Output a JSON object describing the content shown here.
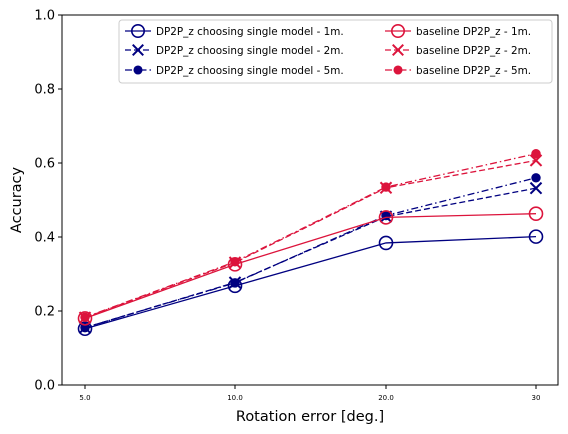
{
  "chart_data": {
    "type": "line",
    "title": "",
    "xlabel": "Rotation error [deg.]",
    "ylabel": "Accuracy",
    "categories": [
      "5.0",
      "10.0",
      "20.0",
      "30"
    ],
    "ylim": [
      0,
      1
    ],
    "yticks": [
      "0.0",
      "0.2",
      "0.4",
      "0.6",
      "0.8",
      "1.0"
    ],
    "grid": false,
    "legend_position": "top-right",
    "series": [
      {
        "name": "DP2P_z choosing single model - 1m.",
        "color": "#000080",
        "linestyle": "solid",
        "marker": "open-circle",
        "values": [
          0.152,
          0.268,
          0.384,
          0.401
        ]
      },
      {
        "name": "DP2P_z choosing single model - 2m.",
        "color": "#000080",
        "linestyle": "dashed",
        "marker": "x",
        "values": [
          0.155,
          0.277,
          0.455,
          0.532
        ]
      },
      {
        "name": "DP2P_z choosing single model - 5m.",
        "color": "#000080",
        "linestyle": "dashdot",
        "marker": "dot",
        "values": [
          0.155,
          0.276,
          0.458,
          0.56
        ]
      },
      {
        "name": "baseline DP2P_z - 1m.",
        "color": "#dc143c",
        "linestyle": "solid",
        "marker": "open-circle",
        "values": [
          0.18,
          0.326,
          0.453,
          0.463
        ]
      },
      {
        "name": "baseline DP2P_z - 2m.",
        "color": "#dc143c",
        "linestyle": "dashed",
        "marker": "x",
        "values": [
          0.182,
          0.331,
          0.533,
          0.607
        ]
      },
      {
        "name": "baseline DP2P_z - 5m.",
        "color": "#dc143c",
        "linestyle": "dashdot",
        "marker": "dot",
        "values": [
          0.183,
          0.333,
          0.535,
          0.625
        ]
      }
    ]
  }
}
